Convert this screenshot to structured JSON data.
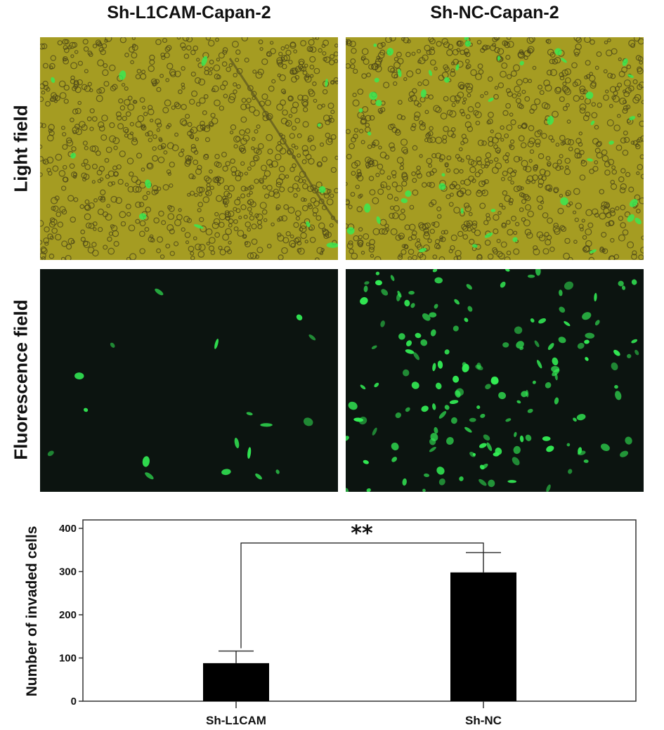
{
  "figure": {
    "column_titles": [
      "Sh-L1CAM-Capan-2",
      "Sh-NC-Capan-2"
    ],
    "row_labels": [
      "Light field",
      "Fluorescence field"
    ],
    "panels": [
      {
        "row": "Light field",
        "column": "Sh-L1CAM-Capan-2",
        "background": "#a59c22",
        "green_cells": "few"
      },
      {
        "row": "Light field",
        "column": "Sh-NC-Capan-2",
        "background": "#a59c22",
        "green_cells": "many"
      },
      {
        "row": "Fluorescence field",
        "column": "Sh-L1CAM-Capan-2",
        "background": "#0c1410",
        "green_cells": "few"
      },
      {
        "row": "Fluorescence field",
        "column": "Sh-NC-Capan-2",
        "background": "#0c1410",
        "green_cells": "many"
      }
    ],
    "colors": {
      "fluorescence": "#33ee55",
      "bar": "#000000"
    }
  },
  "chart_data": {
    "type": "bar",
    "categories": [
      "Sh-L1CAM",
      "Sh-NC"
    ],
    "values": [
      88,
      298
    ],
    "error_upper": [
      116,
      344
    ],
    "xlabel": "",
    "ylabel": "Number of invaded cells",
    "ylim": [
      0,
      420
    ],
    "yticks": [
      "0",
      "100",
      "200",
      "300",
      "400"
    ],
    "grid": false,
    "significance": {
      "label": "**",
      "between": [
        "Sh-L1CAM",
        "Sh-NC"
      ]
    }
  }
}
